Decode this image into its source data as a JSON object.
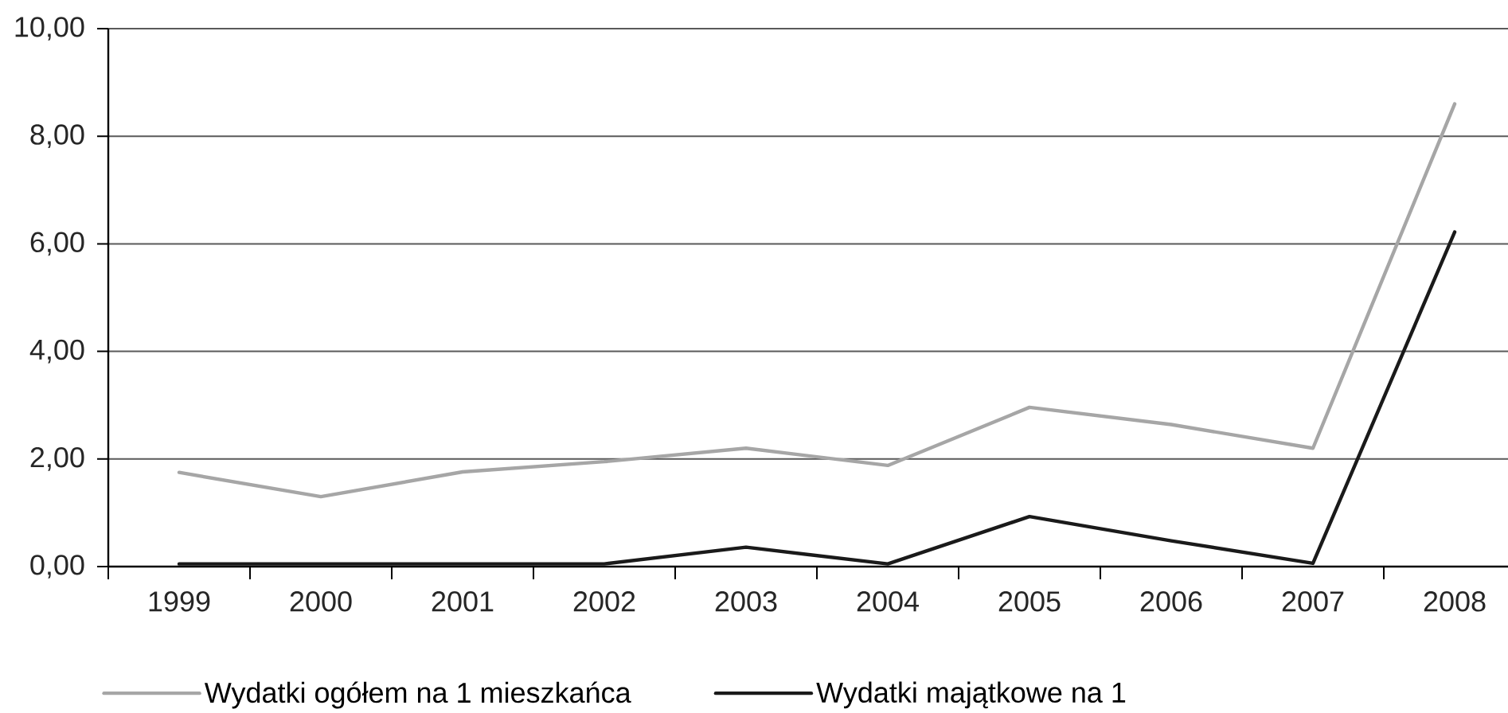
{
  "chart_data": {
    "type": "line",
    "categories": [
      "1999",
      "2000",
      "2001",
      "2002",
      "2003",
      "2004",
      "2005",
      "2006",
      "2007",
      "2008"
    ],
    "series": [
      {
        "name": "Wydatki ogółem na 1 mieszkańca",
        "color": "#a6a6a6",
        "values": [
          1.75,
          1.3,
          1.76,
          1.95,
          2.2,
          1.88,
          2.96,
          2.64,
          2.2,
          8.6
        ]
      },
      {
        "name": "Wydatki majątkowe na 1",
        "color": "#1a1a1a",
        "values": [
          0.05,
          0.05,
          0.05,
          0.05,
          0.36,
          0.05,
          0.93,
          0.48,
          0.06,
          6.22
        ]
      }
    ],
    "ylim": [
      0,
      10
    ],
    "yticks": [
      {
        "value": 0,
        "label": "0,00"
      },
      {
        "value": 2,
        "label": "2,00"
      },
      {
        "value": 4,
        "label": "4,00"
      },
      {
        "value": 6,
        "label": "6,00"
      },
      {
        "value": 8,
        "label": "8,00"
      },
      {
        "value": 10,
        "label": "10,00"
      }
    ],
    "grid": "y",
    "legend": "bottom",
    "marker": "none",
    "line_style": "solid"
  }
}
